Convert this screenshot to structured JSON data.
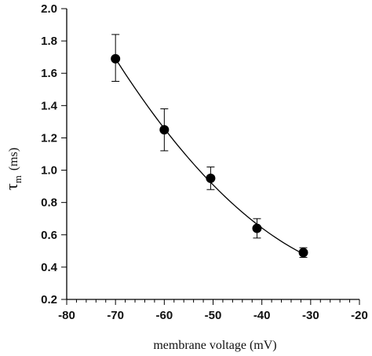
{
  "chart_data": {
    "type": "scatter",
    "title": "",
    "xlabel": "membrane voltage (mV)",
    "ylabel": {
      "symbol": "τ",
      "subscript": "m",
      "unit": "(ms)"
    },
    "xlim": [
      -80,
      -20
    ],
    "ylim": [
      0.2,
      2.0
    ],
    "x_major_ticks": [
      -80,
      -70,
      -60,
      -50,
      -40,
      -30,
      -20
    ],
    "x_tick_labels": [
      "-80",
      "-70",
      "-60",
      "-50",
      "-40",
      "-30",
      "-20"
    ],
    "x_minor_step": 2,
    "y_major_ticks": [
      0.2,
      0.4,
      0.6,
      0.8,
      1.0,
      1.2,
      1.4,
      1.6,
      1.8,
      2.0
    ],
    "y_tick_labels": [
      "0.2",
      "0.4",
      "0.6",
      "0.8",
      "1.0",
      "1.2",
      "1.4",
      "1.6",
      "1.8",
      "2.0"
    ],
    "grid": false,
    "legend": "none",
    "fit_curve": true,
    "points": [
      {
        "x": -70,
        "y": 1.69,
        "err_low": 1.55,
        "err_high": 1.84
      },
      {
        "x": -60,
        "y": 1.25,
        "err_low": 1.12,
        "err_high": 1.38
      },
      {
        "x": -50.5,
        "y": 0.95,
        "err_low": 0.88,
        "err_high": 1.02
      },
      {
        "x": -41,
        "y": 0.64,
        "err_low": 0.58,
        "err_high": 0.7
      },
      {
        "x": -31.5,
        "y": 0.49,
        "err_low": 0.46,
        "err_high": 0.52
      }
    ],
    "colors": {
      "marker": "#000000",
      "line": "#000000"
    }
  }
}
